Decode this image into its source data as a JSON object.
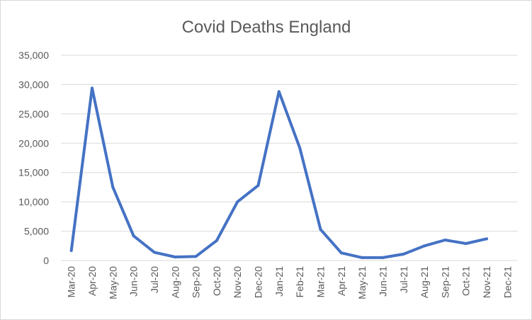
{
  "chart_data": {
    "type": "line",
    "title": "Covid Deaths England",
    "xlabel": "",
    "ylabel": "",
    "categories": [
      "Mar-20",
      "Apr-20",
      "May-20",
      "Jun-20",
      "Jul-20",
      "Aug-20",
      "Sep-20",
      "Oct-20",
      "Nov-20",
      "Dec-20",
      "Jan-21",
      "Feb-21",
      "Mar-21",
      "Apr-21",
      "May-21",
      "Jun-21",
      "Jul-21",
      "Aug-21",
      "Sep-21",
      "Oct-21",
      "Nov-21",
      "Dec-21"
    ],
    "series": [
      {
        "name": "Covid Deaths England",
        "color": "#4472c4",
        "values": [
          1700,
          29400,
          12500,
          4200,
          1400,
          600,
          700,
          3400,
          10000,
          12800,
          28800,
          19200,
          5300,
          1300,
          500,
          500,
          1100,
          2500,
          3500,
          2900,
          3700,
          null
        ]
      }
    ],
    "ylim": [
      0,
      35000
    ],
    "yticks": [
      0,
      5000,
      10000,
      15000,
      20000,
      25000,
      30000,
      35000
    ],
    "ytick_labels": [
      "0",
      "5,000",
      "10,000",
      "15,000",
      "20,000",
      "25,000",
      "30,000",
      "35,000"
    ],
    "grid": true,
    "legend": "none",
    "colors": {
      "gridline": "#d9d9d9",
      "text": "#595959",
      "line": "#4472c4"
    }
  }
}
